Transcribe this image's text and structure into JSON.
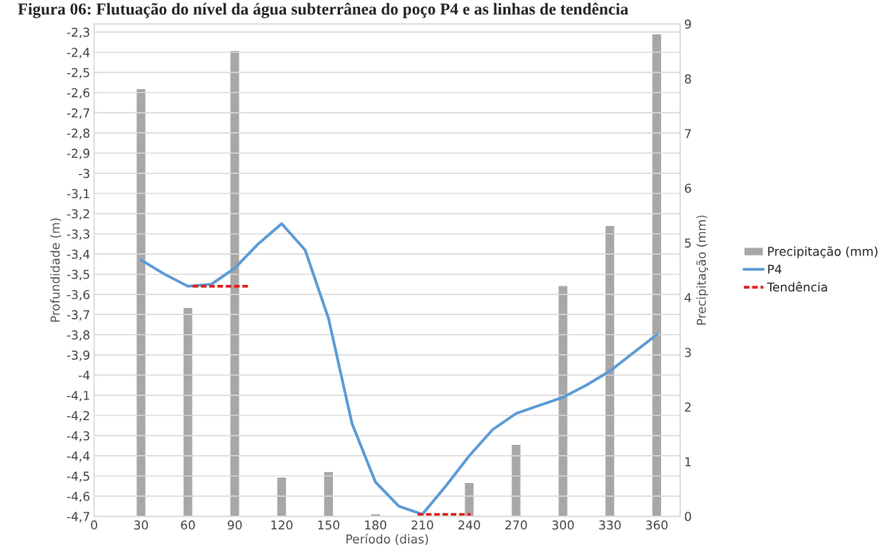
{
  "chart_data": {
    "type": "line",
    "title": "Figura 06: Flutuação do nível da água subterrânea do poço P4 e as linhas de tendência",
    "xlabel": "Período (dias)",
    "ylabel": "Profundidade (m)",
    "y2label": "Precipitação (mm)",
    "xlim": [
      0,
      375
    ],
    "xticks": [
      0,
      30,
      60,
      90,
      120,
      150,
      180,
      210,
      240,
      270,
      300,
      330,
      360
    ],
    "ylim": [
      -4.7,
      -2.26
    ],
    "yticks": [
      {
        "value": -4.7,
        "label": "-4,7"
      },
      {
        "value": -4.6,
        "label": "-4,6"
      },
      {
        "value": -4.5,
        "label": "-4,5"
      },
      {
        "value": -4.4,
        "label": "-4,4"
      },
      {
        "value": -4.3,
        "label": "-4,3"
      },
      {
        "value": -4.2,
        "label": "-4,2"
      },
      {
        "value": -4.1,
        "label": "-4,1"
      },
      {
        "value": -4,
        "label": "-4"
      },
      {
        "value": -3.9,
        "label": "-3,9"
      },
      {
        "value": -3.8,
        "label": "-3,8"
      },
      {
        "value": -3.7,
        "label": "-3,7"
      },
      {
        "value": -3.6,
        "label": "-3,6"
      },
      {
        "value": -3.5,
        "label": "-3,5"
      },
      {
        "value": -3.4,
        "label": "-3,4"
      },
      {
        "value": -3.3,
        "label": "-3,3"
      },
      {
        "value": -3.2,
        "label": "-3,2"
      },
      {
        "value": -3.1,
        "label": "-3,1"
      },
      {
        "value": -3,
        "label": "-3"
      },
      {
        "value": -2.9,
        "label": "-2,9"
      },
      {
        "value": -2.8,
        "label": "-2,8"
      },
      {
        "value": -2.7,
        "label": "-2,7"
      },
      {
        "value": -2.6,
        "label": "-2,6"
      },
      {
        "value": -2.5,
        "label": "-2,5"
      },
      {
        "value": -2.4,
        "label": "-2,4"
      },
      {
        "value": -2.3,
        "label": "-2,3"
      }
    ],
    "y2lim": [
      0,
      9
    ],
    "y2ticks": [
      0,
      1,
      2,
      3,
      4,
      5,
      6,
      7,
      8,
      9
    ],
    "grid": "y",
    "legend": "right",
    "series": [
      {
        "name": "Precipitação (mm)",
        "type": "bar",
        "axis": "y2",
        "color": "#a9a6a6",
        "x": [
          30,
          60,
          90,
          120,
          150,
          180,
          210,
          240,
          270,
          300,
          330,
          360
        ],
        "values": [
          7.8,
          3.8,
          8.5,
          0.7,
          0.8,
          0.03,
          0,
          0.6,
          1.3,
          4.2,
          5.3,
          8.8
        ]
      },
      {
        "name": "P4",
        "color": "#5b9bd5",
        "line_style": "solid",
        "x": [
          30,
          45,
          60,
          75,
          90,
          105,
          120,
          135,
          150,
          165,
          180,
          195,
          210,
          225,
          240,
          255,
          270,
          285,
          300,
          315,
          330,
          345,
          360
        ],
        "values": [
          -3.43,
          -3.5,
          -3.56,
          -3.55,
          -3.47,
          -3.35,
          -3.25,
          -3.38,
          -3.72,
          -4.24,
          -4.53,
          -4.65,
          -4.69,
          -4.55,
          -4.4,
          -4.27,
          -4.19,
          -4.15,
          -4.11,
          -4.05,
          -3.98,
          -3.89,
          -3.8
        ]
      },
      {
        "name": "Tendência",
        "type": "line",
        "color": "#e02020",
        "line_style": "dashed",
        "x": [
          63,
          99,
          150,
          207,
          241
        ],
        "values": [
          -3.56,
          -3.56,
          null,
          -4.69,
          -4.69
        ]
      }
    ]
  }
}
